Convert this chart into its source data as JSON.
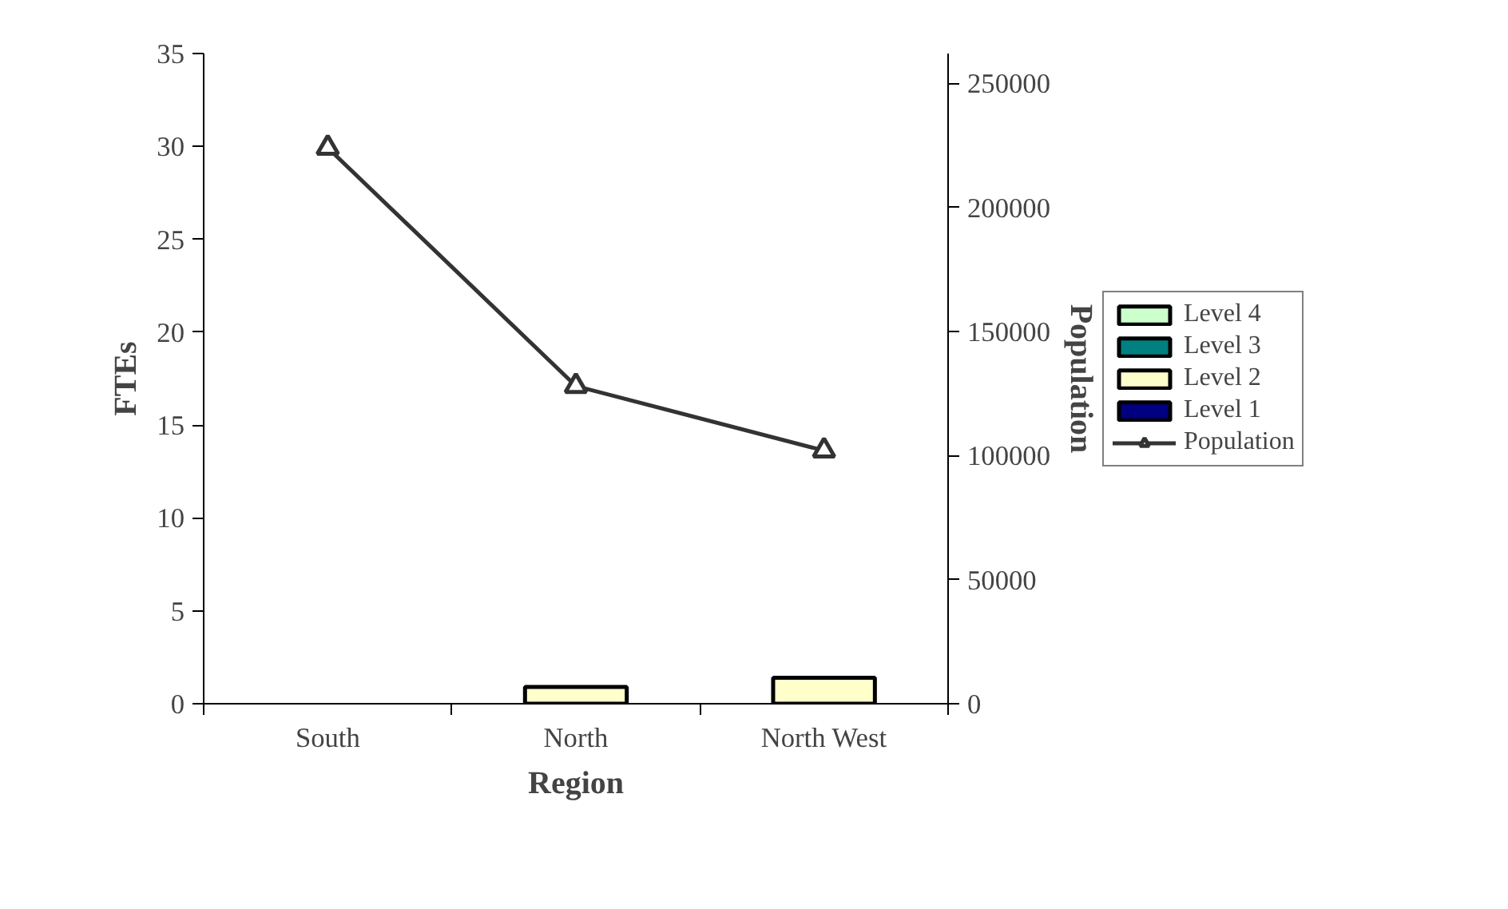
{
  "chart_data": {
    "type": "bar",
    "stacked": true,
    "xlabel": "Region",
    "ylabel": "FTEs",
    "y2label": "Population",
    "categories": [
      "South",
      "North",
      "North West"
    ],
    "ylim": [
      0,
      35
    ],
    "yticks": [
      0,
      5,
      10,
      15,
      20,
      25,
      30,
      35
    ],
    "y2lim": [
      0,
      262000
    ],
    "y2ticks": [
      0,
      50000,
      100000,
      150000,
      200000,
      250000
    ],
    "legend": "right",
    "grid": false,
    "series": [
      {
        "name": "Level 1",
        "color": "#000080",
        "values": [
          0,
          0,
          0
        ]
      },
      {
        "name": "Level 2",
        "color": "#ffffcc",
        "values": [
          0,
          0.9,
          1.4
        ]
      },
      {
        "name": "Level 3",
        "color": "#008080",
        "values": [
          0,
          0,
          0
        ]
      },
      {
        "name": "Level 4",
        "color": "#ccffcc",
        "values": [
          0,
          0,
          0
        ]
      },
      {
        "name": "Population",
        "type": "line",
        "axis": "y2",
        "color": "#333333",
        "marker": "triangle",
        "values": [
          224000,
          128000,
          102000
        ]
      }
    ]
  }
}
